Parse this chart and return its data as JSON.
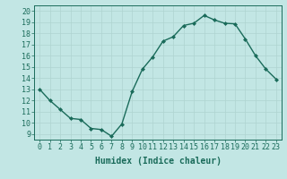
{
  "x": [
    0,
    1,
    2,
    3,
    4,
    5,
    6,
    7,
    8,
    9,
    10,
    11,
    12,
    13,
    14,
    15,
    16,
    17,
    18,
    19,
    20,
    21,
    22,
    23
  ],
  "y": [
    13,
    12,
    11.2,
    10.4,
    10.3,
    9.5,
    9.4,
    8.8,
    9.9,
    12.8,
    14.8,
    15.9,
    17.3,
    17.7,
    18.7,
    18.9,
    19.6,
    19.2,
    18.9,
    18.85,
    17.5,
    16.0,
    14.8,
    13.9
  ],
  "line_color": "#1a6b5a",
  "bg_color": "#c2e6e4",
  "grid_color": "#afd4d0",
  "xlabel": "Humidex (Indice chaleur)",
  "xlim": [
    -0.5,
    23.5
  ],
  "ylim": [
    8.5,
    20.5
  ],
  "yticks": [
    9,
    10,
    11,
    12,
    13,
    14,
    15,
    16,
    17,
    18,
    19,
    20
  ],
  "xticks": [
    0,
    1,
    2,
    3,
    4,
    5,
    6,
    7,
    8,
    9,
    10,
    11,
    12,
    13,
    14,
    15,
    16,
    17,
    18,
    19,
    20,
    21,
    22,
    23
  ],
  "xtick_labels": [
    "0",
    "1",
    "2",
    "3",
    "4",
    "5",
    "6",
    "7",
    "8",
    "9",
    "10",
    "11",
    "12",
    "13",
    "14",
    "15",
    "16",
    "17",
    "18",
    "19",
    "20",
    "21",
    "22",
    "23"
  ],
  "marker": "D",
  "marker_size": 2.0,
  "line_width": 1.0,
  "xlabel_fontsize": 7,
  "tick_fontsize": 6
}
